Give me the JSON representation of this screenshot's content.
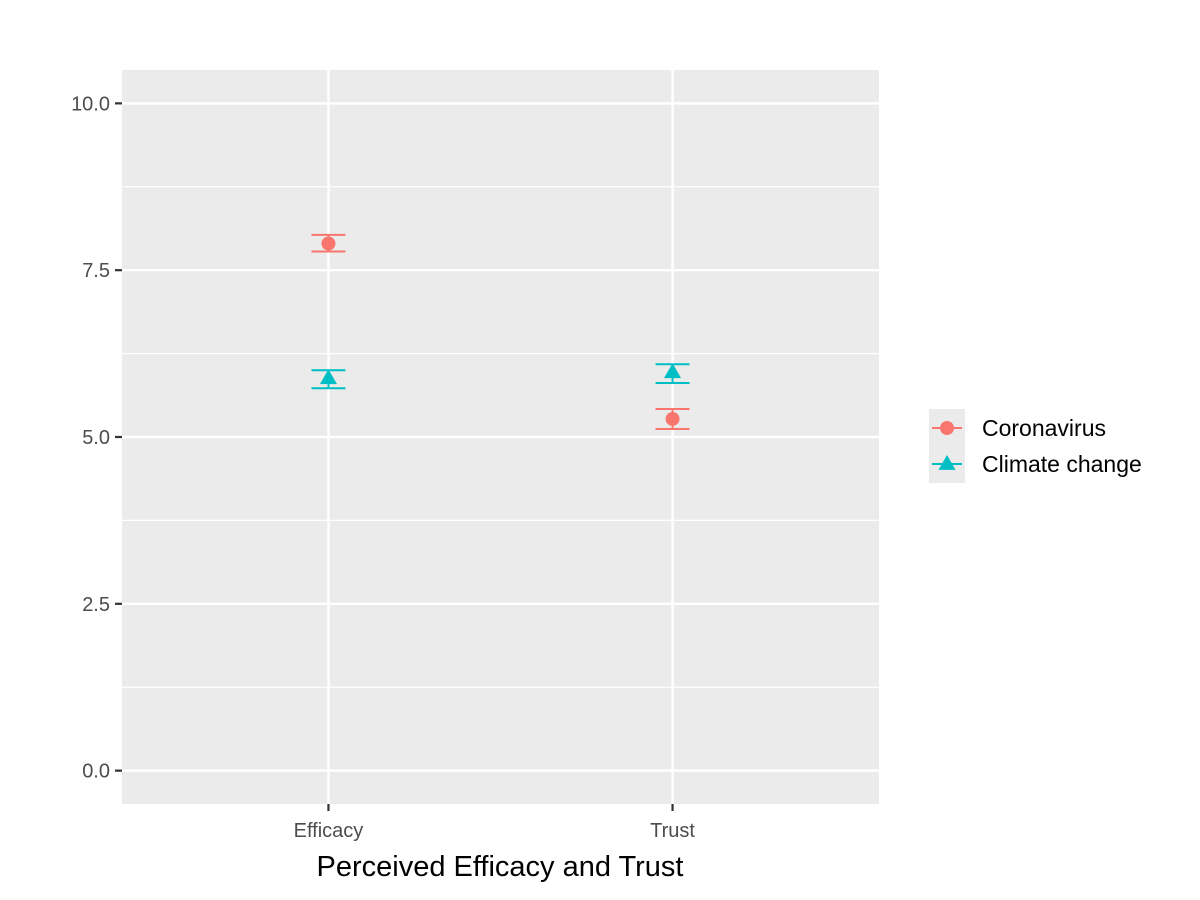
{
  "chart_data": {
    "type": "scatter",
    "title": "",
    "xlabel": "Perceived Efficacy and Trust",
    "ylabel": "",
    "categories": [
      "Efficacy",
      "Trust"
    ],
    "ylim": [
      -0.5,
      10.5
    ],
    "y_ticks": [
      0.0,
      2.5,
      5.0,
      7.5,
      10.0
    ],
    "y_tick_labels": [
      "0.0",
      "2.5",
      "5.0",
      "7.5",
      "10.0"
    ],
    "grid": true,
    "legend_position": "right",
    "series": [
      {
        "name": "Coronavirus",
        "marker": "circle",
        "color": "#F8766D",
        "values": [
          7.9,
          5.27
        ],
        "error_low": [
          7.78,
          5.12
        ],
        "error_high": [
          8.03,
          5.42
        ]
      },
      {
        "name": "Climate change",
        "marker": "triangle",
        "color": "#00BFC4",
        "values": [
          5.88,
          5.97
        ],
        "error_low": [
          5.73,
          5.81
        ],
        "error_high": [
          6.0,
          6.09
        ]
      }
    ]
  },
  "colors": {
    "panel_background": "#EBEBEB",
    "grid_line": "#FFFFFF",
    "tick_mark": "#333333"
  }
}
